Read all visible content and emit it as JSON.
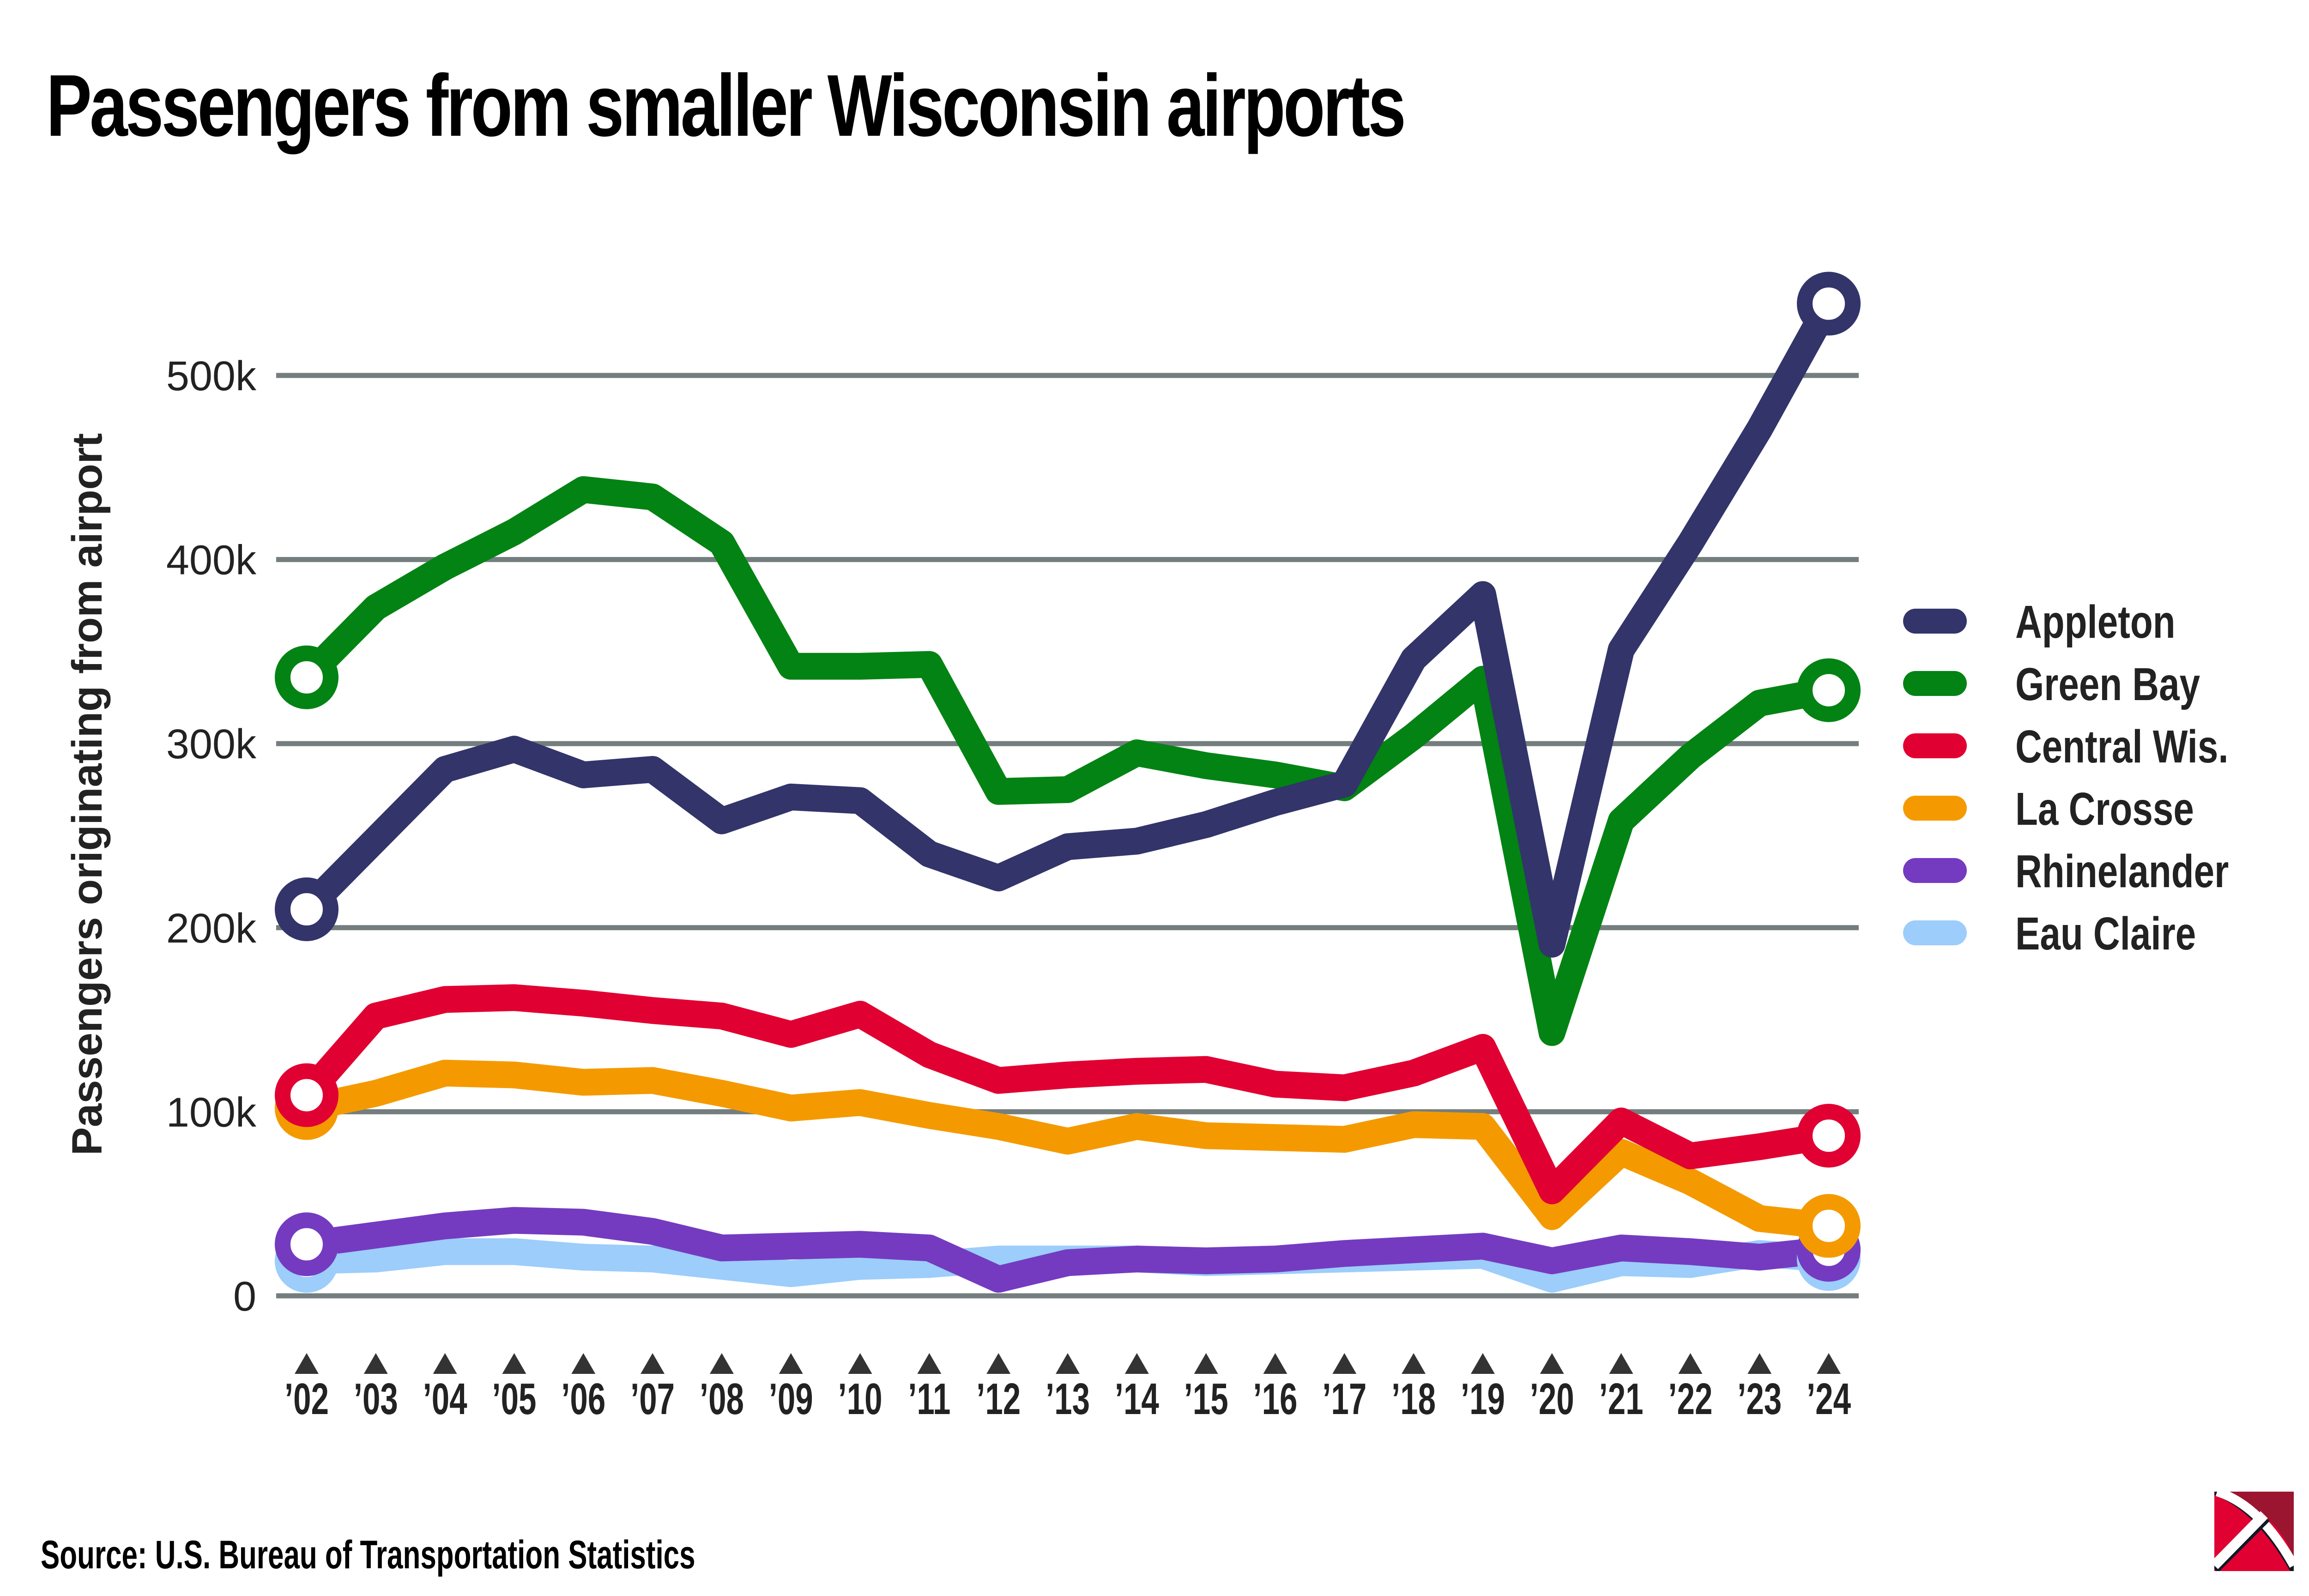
{
  "title": "Passengers from smaller Wisconsin airports",
  "source": "Source: U.S. Bureau of Transportation Statistics",
  "logo": {
    "icon": "pickaxe-logo-icon",
    "colors": {
      "primary": "#e00032",
      "dark": "#9b1530"
    }
  },
  "chart_data": {
    "type": "line",
    "title": "Passengers from smaller Wisconsin airports",
    "xlabel": "",
    "ylabel": "Passengers originating from airport",
    "x": [
      "’02",
      "’03",
      "’04",
      "’05",
      "’06",
      "’07",
      "’08",
      "’09",
      "’10",
      "’11",
      "’12",
      "’13",
      "’14",
      "’15",
      "’16",
      "’17",
      "’18",
      "’19",
      "’20",
      "’21",
      "’22",
      "’23",
      "’24"
    ],
    "ylim": [
      0,
      550000
    ],
    "yticks": [
      0,
      100000,
      200000,
      300000,
      400000,
      500000
    ],
    "ytick_labels": [
      "0",
      "100k",
      "200k",
      "300k",
      "400k",
      "500k"
    ],
    "grid": true,
    "legend_position": "right",
    "endpoint_markers": true,
    "series": [
      {
        "name": "Appleton",
        "color": "#32346a",
        "values": [
          210000,
          248000,
          286000,
          297000,
          283000,
          286000,
          258000,
          271000,
          269000,
          240000,
          227000,
          244000,
          247000,
          256000,
          268000,
          278000,
          346000,
          381000,
          191000,
          351000,
          409000,
          471000,
          539000
        ]
      },
      {
        "name": "Green Bay",
        "color": "#028313",
        "values": [
          336000,
          374000,
          396000,
          415000,
          438000,
          434000,
          409000,
          342000,
          342000,
          343000,
          274000,
          275000,
          295000,
          288000,
          283000,
          276000,
          304000,
          335000,
          143000,
          258000,
          293000,
          322000,
          329000
        ]
      },
      {
        "name": "Central Wis.",
        "color": "#e00032",
        "values": [
          109000,
          152000,
          161000,
          162000,
          159000,
          155000,
          152000,
          142000,
          153000,
          131000,
          117000,
          120000,
          122000,
          123000,
          115000,
          113000,
          121000,
          135000,
          57000,
          95000,
          76000,
          81000,
          87000
        ]
      },
      {
        "name": "La Crosse",
        "color": "#f49a00",
        "values": [
          102000,
          110000,
          121000,
          120000,
          116000,
          117000,
          110000,
          102000,
          105000,
          98000,
          92000,
          84000,
          92000,
          87000,
          86000,
          85000,
          93000,
          92000,
          43000,
          78000,
          62000,
          42000,
          38000
        ]
      },
      {
        "name": "Rhinelander",
        "color": "#743bc1",
        "values": [
          28000,
          33000,
          38000,
          41000,
          40000,
          35000,
          26000,
          27000,
          28000,
          26000,
          9000,
          18000,
          20000,
          19000,
          20000,
          23000,
          25000,
          27000,
          19000,
          26000,
          24000,
          21000,
          25000
        ]
      },
      {
        "name": "Eau Claire",
        "color": "#9ccdfb",
        "values": [
          19000,
          20000,
          24000,
          24000,
          21000,
          20000,
          16000,
          12000,
          16000,
          17000,
          20000,
          20000,
          20000,
          18000,
          19000,
          20000,
          21000,
          22000,
          9000,
          18000,
          17000,
          23000,
          20000
        ]
      }
    ]
  }
}
